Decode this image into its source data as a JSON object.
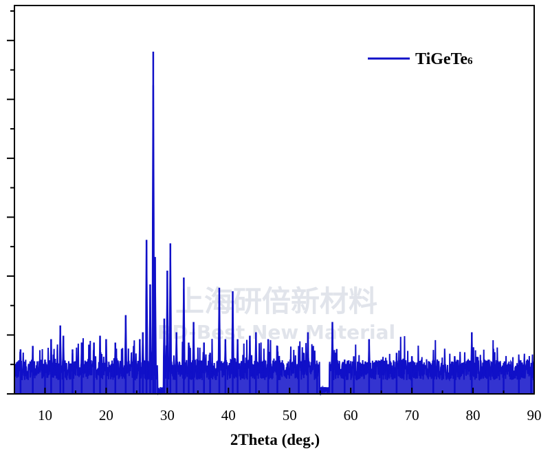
{
  "chart_data": {
    "type": "line",
    "title": "",
    "xlabel": "2Theta (deg.)",
    "ylabel": "",
    "xlim": [
      5,
      90
    ],
    "ylim": [
      0,
      100
    ],
    "x_ticks": [
      10,
      20,
      30,
      40,
      50,
      60,
      70,
      80,
      90
    ],
    "y_tick_labels_shown": false,
    "grid": false,
    "legend_position": "top-right",
    "series": [
      {
        "name": "TiGeTe6",
        "name_main": "TiGeTe",
        "name_subscript": "6",
        "color": "#1010c8",
        "peaks": [
          {
            "x": 6.0,
            "y": 13
          },
          {
            "x": 8.0,
            "y": 14
          },
          {
            "x": 10.0,
            "y": 10
          },
          {
            "x": 11.0,
            "y": 16
          },
          {
            "x": 12.5,
            "y": 20
          },
          {
            "x": 13.0,
            "y": 17
          },
          {
            "x": 14.5,
            "y": 13
          },
          {
            "x": 16.0,
            "y": 15
          },
          {
            "x": 18.0,
            "y": 15
          },
          {
            "x": 19.0,
            "y": 17
          },
          {
            "x": 20.0,
            "y": 16
          },
          {
            "x": 21.5,
            "y": 15
          },
          {
            "x": 23.2,
            "y": 23
          },
          {
            "x": 24.5,
            "y": 14
          },
          {
            "x": 25.5,
            "y": 16
          },
          {
            "x": 26.0,
            "y": 18
          },
          {
            "x": 26.6,
            "y": 45
          },
          {
            "x": 27.2,
            "y": 32
          },
          {
            "x": 27.7,
            "y": 100
          },
          {
            "x": 28.0,
            "y": 40
          },
          {
            "x": 29.5,
            "y": 22
          },
          {
            "x": 30.0,
            "y": 36
          },
          {
            "x": 30.5,
            "y": 44
          },
          {
            "x": 31.5,
            "y": 18
          },
          {
            "x": 32.7,
            "y": 34
          },
          {
            "x": 33.5,
            "y": 15
          },
          {
            "x": 34.3,
            "y": 21
          },
          {
            "x": 36.0,
            "y": 15
          },
          {
            "x": 37.0,
            "y": 12
          },
          {
            "x": 38.5,
            "y": 31
          },
          {
            "x": 39.5,
            "y": 16
          },
          {
            "x": 40.7,
            "y": 30
          },
          {
            "x": 41.5,
            "y": 16
          },
          {
            "x": 43.5,
            "y": 17
          },
          {
            "x": 44.5,
            "y": 18
          },
          {
            "x": 46.5,
            "y": 16
          },
          {
            "x": 48.0,
            "y": 14
          },
          {
            "x": 51.5,
            "y": 14
          },
          {
            "x": 53.0,
            "y": 18
          },
          {
            "x": 54.5,
            "y": 9
          },
          {
            "x": 57.0,
            "y": 21
          },
          {
            "x": 59.0,
            "y": 10
          },
          {
            "x": 60.5,
            "y": 11
          },
          {
            "x": 63.0,
            "y": 16
          },
          {
            "x": 65.0,
            "y": 10
          },
          {
            "x": 67.5,
            "y": 12
          },
          {
            "x": 70.0,
            "y": 11
          },
          {
            "x": 73.5,
            "y": 10
          },
          {
            "x": 77.0,
            "y": 11
          },
          {
            "x": 79.8,
            "y": 18
          },
          {
            "x": 82.5,
            "y": 10
          },
          {
            "x": 85.0,
            "y": 9
          },
          {
            "x": 87.5,
            "y": 10
          },
          {
            "x": 89.5,
            "y": 8
          }
        ]
      }
    ]
  },
  "watermark": {
    "line1": "上海研倍新材料",
    "line2": "RD-Best New Material"
  }
}
